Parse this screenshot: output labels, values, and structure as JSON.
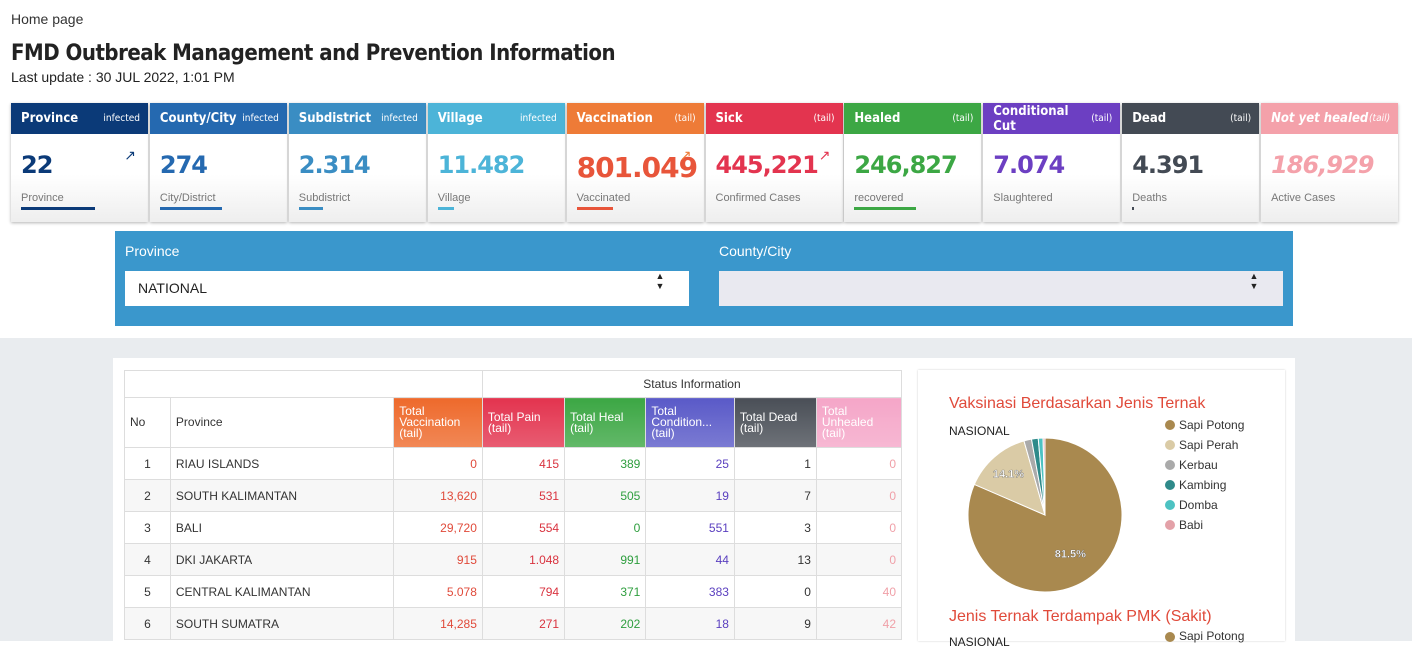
{
  "breadcrumb": "Home page",
  "header": {
    "title": "FMD Outbreak Management and Prevention Information",
    "subtitle": "Last update : 30 JUL 2022, 1:01 PM"
  },
  "cards": [
    {
      "title": "Province",
      "tag": "infected",
      "value": "22",
      "label": "Province",
      "color": "#0b3a78"
    },
    {
      "title": "County/City",
      "tag": "infected",
      "value": "274",
      "label": "City/District",
      "color": "#2569b0"
    },
    {
      "title": "Subdistrict",
      "tag": "infected",
      "value": "2.314",
      "label": "Subdistrict",
      "color": "#3a8dc3"
    },
    {
      "title": "Village",
      "tag": "infected",
      "value": "11.482",
      "label": "Village",
      "color": "#4cb4d8"
    },
    {
      "title": "Vaccination",
      "tag": "(tail)",
      "value": "801.049",
      "label": "Vaccinated",
      "color": "#ee7b37"
    },
    {
      "title": "Sick",
      "tag": "(tail)",
      "value": "445,221",
      "label": "Confirmed Cases",
      "color": "#e3344f"
    },
    {
      "title": "Healed",
      "tag": "(tail)",
      "value": "246,827",
      "label": "recovered",
      "color": "#3ca744"
    },
    {
      "title": "Conditional Cut",
      "tag": "(tail)",
      "value": "7.074",
      "label": "Slaughtered",
      "color": "#6c3fc2"
    },
    {
      "title": "Dead",
      "tag": "(tail)",
      "value": "4.391",
      "label": "Deaths",
      "color": "#434a54"
    },
    {
      "title": "Not yet healed",
      "tag": "(tail)",
      "value": "186,929",
      "label": "Active Cases",
      "color": "#f4a1aa"
    }
  ],
  "filters": [
    {
      "label": "Province",
      "selected": "NATIONAL"
    },
    {
      "label": "County/City",
      "selected": ""
    }
  ],
  "table": {
    "group_header": "Status Information",
    "columns": [
      "No",
      "Province",
      "Total Vaccination (tail)",
      "Total Pain (tail)",
      "Total Heal (tail)",
      "Total Condition... (tail)",
      "Total Dead (tail)",
      "Total Unhealed (tail)"
    ],
    "rows": [
      [
        "1",
        "RIAU ISLANDS",
        "0",
        "415",
        "389",
        "25",
        "1",
        "0"
      ],
      [
        "2",
        "SOUTH KALIMANTAN",
        "13,620",
        "531",
        "505",
        "19",
        "7",
        "0"
      ],
      [
        "3",
        "BALI",
        "29,720",
        "554",
        "0",
        "551",
        "3",
        "0"
      ],
      [
        "4",
        "DKI JAKARTA",
        "915",
        "1.048",
        "991",
        "44",
        "13",
        "0"
      ],
      [
        "5",
        "CENTRAL KALIMANTAN",
        "5.078",
        "794",
        "371",
        "383",
        "0",
        "40"
      ],
      [
        "6",
        "SOUTH SUMATRA",
        "14,285",
        "271",
        "202",
        "18",
        "9",
        "42"
      ]
    ]
  },
  "chart_data": {
    "type": "pie",
    "title": "Vaksinasi Berdasarkan Jenis Ternak",
    "subtitle": "NASIONAL",
    "categories": [
      "Sapi Potong",
      "Sapi Perah",
      "Kerbau",
      "Kambing",
      "Domba",
      "Babi"
    ],
    "values": [
      81.5,
      14.1,
      1.6,
      1.4,
      1.0,
      0.4
    ],
    "value_labels": [
      "81.5%",
      "14.1%",
      null,
      null,
      null,
      null
    ],
    "colors": [
      "#a9894f",
      "#dacba6",
      "#aaaaaa",
      "#2f8a8a",
      "#4dc2c2",
      "#e3a1a8"
    ],
    "legend": "right"
  },
  "second_chart": {
    "title": "Jenis Ternak Terdampak PMK (Sakit)",
    "subtitle": "NASIONAL",
    "legend": [
      "Sapi Potong"
    ]
  }
}
